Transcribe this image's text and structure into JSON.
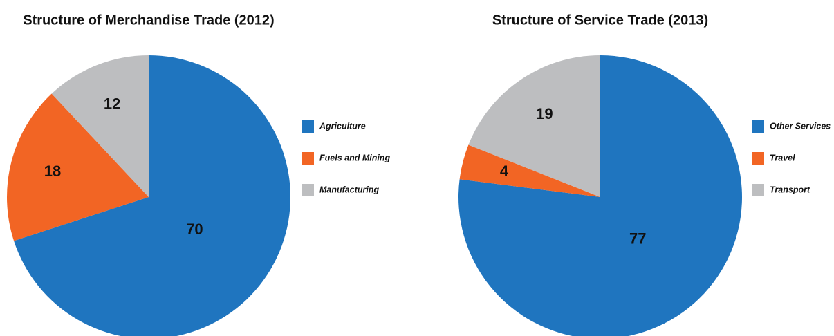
{
  "chart_data": [
    {
      "type": "pie",
      "title": "Structure of Merchandise Trade (2012)",
      "categories": [
        "Agriculture",
        "Fuels and Mining",
        "Manufacturing"
      ],
      "values": [
        70,
        18,
        12
      ],
      "colors": [
        "#1f75bf",
        "#f26524",
        "#bdbec0"
      ],
      "legend": "right"
    },
    {
      "type": "pie",
      "title": "Structure of Service Trade (2013)",
      "categories": [
        "Other Services",
        "Travel",
        "Transport"
      ],
      "values": [
        77,
        4,
        19
      ],
      "colors": [
        "#1f75bf",
        "#f26524",
        "#bdbec0"
      ],
      "legend": "right"
    }
  ]
}
